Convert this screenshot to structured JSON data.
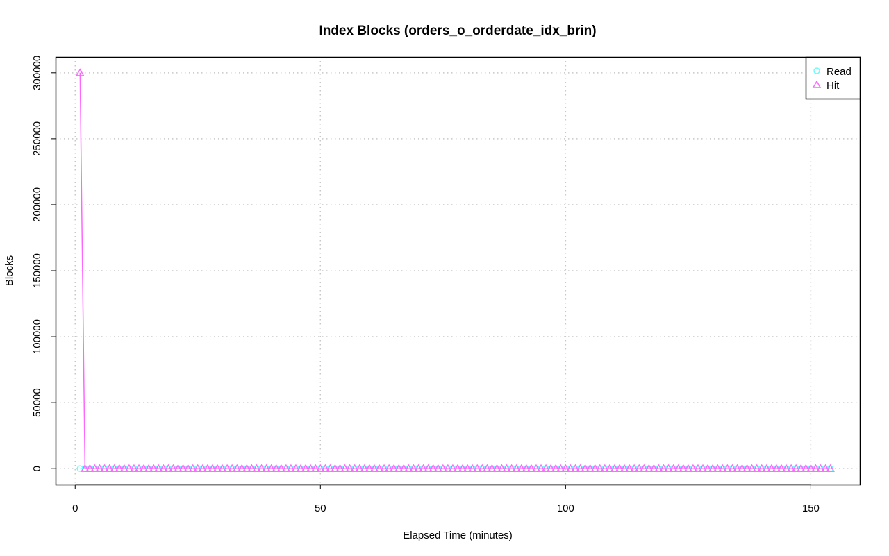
{
  "chart_data": {
    "type": "line",
    "title": "Index Blocks (orders_o_orderdate_idx_brin)",
    "xlabel": "Elapsed Time (minutes)",
    "ylabel": "Blocks",
    "xlim": [
      -4,
      160
    ],
    "ylim": [
      -12000,
      312000
    ],
    "xticks": [
      0,
      50,
      100,
      150
    ],
    "yticks": [
      0,
      50000,
      100000,
      150000,
      200000,
      250000,
      300000
    ],
    "grid": true,
    "legend_position": "top-right",
    "x_start": 1,
    "x_end": 154,
    "series": [
      {
        "name": "Read",
        "color": "#66ffff",
        "marker": "circle",
        "points": [
          [
            1,
            0
          ]
        ],
        "default_value": 0
      },
      {
        "name": "Hit",
        "color": "#ff66ff",
        "marker": "triangle",
        "points": [
          [
            1,
            300000
          ],
          [
            2,
            0
          ]
        ],
        "default_value": 0
      }
    ]
  }
}
